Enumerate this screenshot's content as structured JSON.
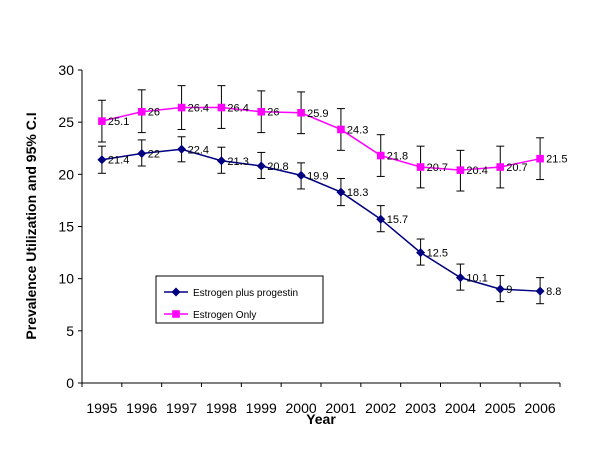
{
  "chart_data": {
    "type": "line",
    "title": "",
    "xlabel": "Year",
    "ylabel": "Prevalence Utilization and 95% C.I",
    "categories": [
      "1995",
      "1996",
      "1997",
      "1998",
      "1999",
      "2000",
      "2001",
      "2002",
      "2003",
      "2004",
      "2005",
      "2006"
    ],
    "yticks": [
      "0",
      "5",
      "10",
      "15",
      "20",
      "25",
      "30"
    ],
    "ylim": [
      0,
      30
    ],
    "grid": false,
    "legend_position": "left-center",
    "series": [
      {
        "name": "Estrogen plus progestin",
        "color": "#000080",
        "marker": "diamond",
        "values": [
          21.4,
          22,
          22.4,
          21.3,
          20.8,
          19.9,
          18.3,
          15.7,
          12.5,
          10.1,
          9,
          8.8
        ],
        "labels": [
          "21.4",
          "22",
          "22.4",
          "21.3",
          "20.8",
          "19.9",
          "18.3",
          "15.7",
          "12.5",
          "10.1",
          "9",
          "8.8"
        ],
        "ci_lower": [
          20.1,
          20.8,
          21.2,
          20.1,
          19.6,
          18.6,
          17.0,
          14.5,
          11.3,
          8.9,
          7.8,
          7.6
        ],
        "ci_upper": [
          22.7,
          23.3,
          23.6,
          22.6,
          22.1,
          21.1,
          19.6,
          17.0,
          13.8,
          11.4,
          10.3,
          10.1
        ]
      },
      {
        "name": "Estrogen Only",
        "color": "#ff00ff",
        "marker": "square",
        "values": [
          25.1,
          26,
          26.4,
          26.4,
          26,
          25.9,
          24.3,
          21.8,
          20.7,
          20.4,
          20.7,
          21.5
        ],
        "labels": [
          "25.1",
          "26",
          "26.4",
          "26.4",
          "26",
          "25.9",
          "24.3",
          "21.8",
          "20.7",
          "20.4",
          "20.7",
          "21.5"
        ],
        "ci_lower": [
          23.1,
          24.0,
          24.3,
          24.4,
          24.0,
          23.9,
          22.3,
          19.8,
          18.7,
          18.4,
          18.7,
          19.5
        ],
        "ci_upper": [
          27.1,
          28.1,
          28.5,
          28.5,
          28.0,
          27.9,
          26.3,
          23.8,
          22.7,
          22.3,
          22.7,
          23.5
        ]
      }
    ]
  }
}
